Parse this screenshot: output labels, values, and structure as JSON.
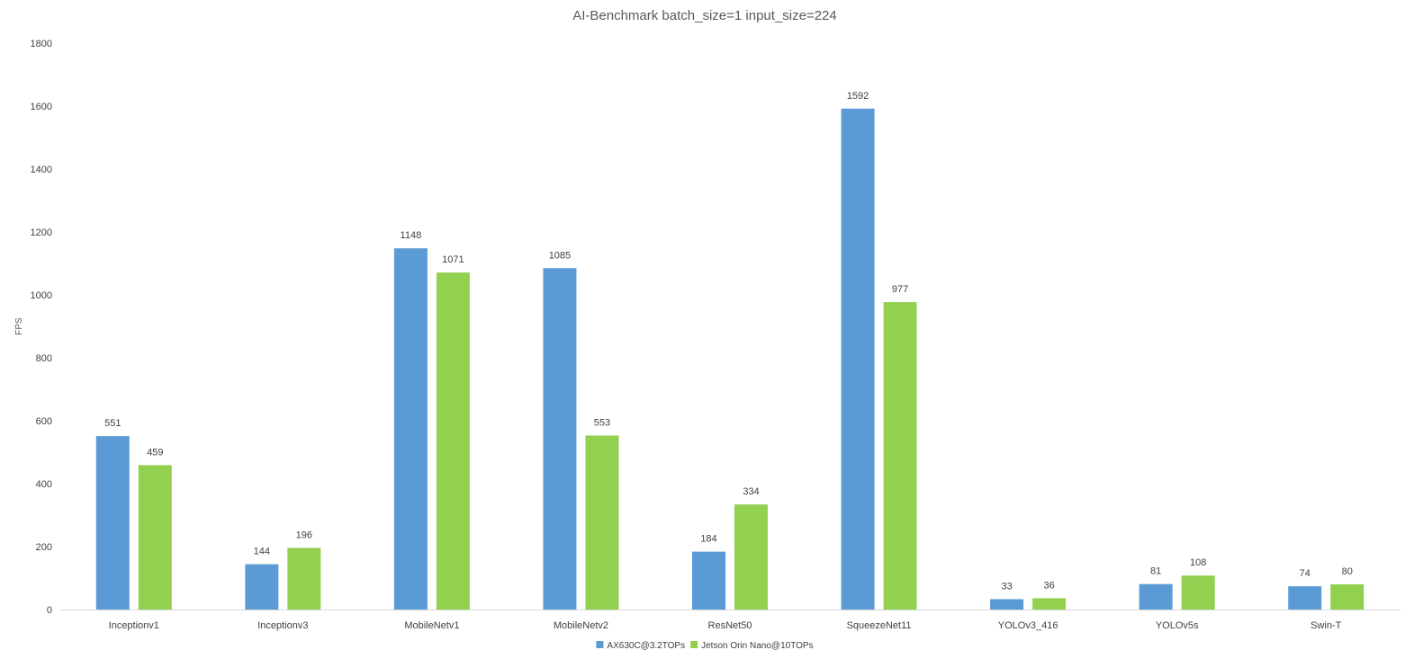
{
  "chart_data": {
    "type": "bar",
    "title": "AI-Benchmark batch_size=1 input_size=224",
    "xlabel": "",
    "ylabel": "FPS",
    "ylim": [
      0,
      1800
    ],
    "yticks": [
      0,
      200,
      400,
      600,
      800,
      1000,
      1200,
      1400,
      1600,
      1800
    ],
    "grid": false,
    "legend_position": "bottom",
    "data_labels": true,
    "categories": [
      "Inceptionv1",
      "Inceptionv3",
      "MobileNetv1",
      "MobileNetv2",
      "ResNet50",
      "SqueezeNet11",
      "YOLOv3_416",
      "YOLOv5s",
      "Swin-T"
    ],
    "series": [
      {
        "name": "AX630C@3.2TOPs",
        "color": "#5B9BD5",
        "values": [
          551,
          144,
          1148,
          1085,
          184,
          1592,
          33,
          81,
          74
        ]
      },
      {
        "name": "Jetson Orin Nano@10TOPs",
        "color": "#92D050",
        "values": [
          459,
          196,
          1071,
          553,
          334,
          977,
          36,
          108,
          80
        ]
      }
    ]
  }
}
